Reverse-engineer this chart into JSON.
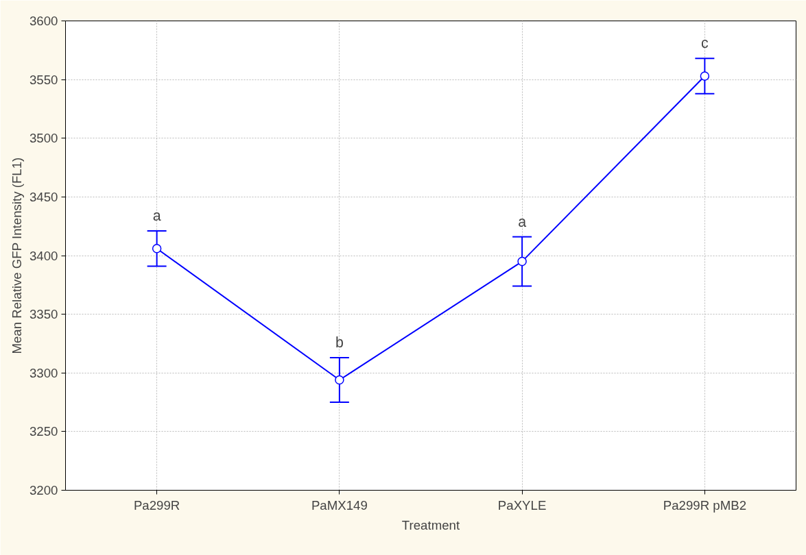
{
  "chart_data": {
    "type": "line",
    "xlabel": "Treatment",
    "ylabel": "Mean Relative GFP Intensity (FL1)",
    "categories": [
      "Pa299R",
      "PaMX149",
      "PaXYLE",
      "Pa299R pMB2"
    ],
    "series": [
      {
        "color": "#0000ff",
        "values": [
          3406,
          3294,
          3395,
          3553
        ],
        "errors": [
          15,
          19,
          21,
          15
        ]
      }
    ],
    "ylim": [
      3200,
      3600
    ],
    "yticks": [
      3200,
      3250,
      3300,
      3350,
      3400,
      3450,
      3500,
      3550,
      3600
    ],
    "grid": true,
    "marker": "circle",
    "line_style": "solid",
    "annotations": [
      "a",
      "b",
      "a",
      "c"
    ]
  }
}
